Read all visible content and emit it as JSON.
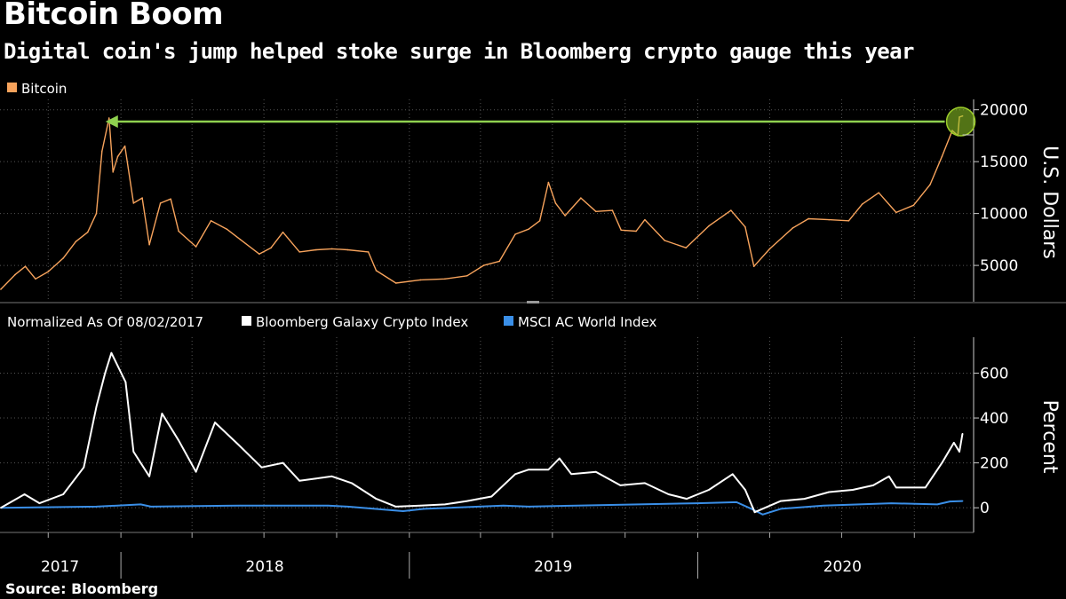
{
  "title": "Bitcoin Boom",
  "subtitle": "Digital coin's jump helped stoke surge in Bloomberg crypto gauge this year",
  "source": "Source: Bloomberg",
  "chart_data": [
    {
      "type": "line",
      "legend": [
        {
          "name": "Bitcoin",
          "color": "#f7a35c"
        }
      ],
      "ylabel": "U.S. Dollars",
      "yticks": [
        5000,
        10000,
        15000,
        20000
      ],
      "ylim": [
        1500,
        21000
      ],
      "grid": true,
      "annotation": "highlighted recent high matching the prior record",
      "series": [
        {
          "name": "Bitcoin",
          "color": "#f7a35c",
          "x": [
            "2017-08-02",
            "2017-08-20",
            "2017-09-02",
            "2017-09-15",
            "2017-10-01",
            "2017-10-20",
            "2017-11-05",
            "2017-11-20",
            "2017-12-01",
            "2017-12-08",
            "2017-12-17",
            "2017-12-22",
            "2017-12-28",
            "2018-01-06",
            "2018-01-17",
            "2018-01-28",
            "2018-02-06",
            "2018-02-20",
            "2018-03-05",
            "2018-03-15",
            "2018-04-06",
            "2018-04-25",
            "2018-05-15",
            "2018-06-01",
            "2018-06-25",
            "2018-07-10",
            "2018-07-25",
            "2018-08-15",
            "2018-09-05",
            "2018-09-25",
            "2018-10-15",
            "2018-11-10",
            "2018-11-20",
            "2018-12-15",
            "2019-01-15",
            "2019-02-15",
            "2019-03-15",
            "2019-04-05",
            "2019-04-25",
            "2019-05-15",
            "2019-06-01",
            "2019-06-15",
            "2019-06-26",
            "2019-07-05",
            "2019-07-17",
            "2019-08-06",
            "2019-08-25",
            "2019-09-15",
            "2019-09-26",
            "2019-10-15",
            "2019-10-26",
            "2019-11-20",
            "2019-12-17",
            "2020-01-15",
            "2020-02-12",
            "2020-03-01",
            "2020-03-12",
            "2020-04-01",
            "2020-04-30",
            "2020-05-20",
            "2020-06-15",
            "2020-07-10",
            "2020-07-27",
            "2020-08-17",
            "2020-09-08",
            "2020-09-30",
            "2020-10-21",
            "2020-11-05",
            "2020-11-18",
            "2020-11-25",
            "2020-11-27",
            "2020-12-01"
          ],
          "values": [
            2700,
            4100,
            4900,
            3700,
            4400,
            5700,
            7300,
            8200,
            10000,
            16000,
            19200,
            14000,
            15500,
            16500,
            11000,
            11500,
            7000,
            11000,
            11400,
            8300,
            6800,
            9300,
            8500,
            7500,
            6100,
            6700,
            8200,
            6300,
            6500,
            6600,
            6500,
            6300,
            4500,
            3300,
            3600,
            3700,
            4000,
            5000,
            5400,
            8000,
            8500,
            9300,
            13000,
            11000,
            9800,
            11500,
            10200,
            10300,
            8400,
            8300,
            9400,
            7400,
            6700,
            8800,
            10300,
            8700,
            4900,
            6600,
            8600,
            9500,
            9400,
            9300,
            10900,
            12000,
            10100,
            10800,
            12800,
            15500,
            18000,
            17500,
            19300,
            19400
          ]
        }
      ]
    },
    {
      "type": "line",
      "legend_title": "Normalized As Of 08/02/2017",
      "legend": [
        {
          "name": "Bloomberg Galaxy Crypto Index",
          "color": "#ffffff"
        },
        {
          "name": "MSCI AC World Index",
          "color": "#3a8fe8"
        }
      ],
      "ylabel": "Percent",
      "yticks": [
        0,
        200,
        400,
        600
      ],
      "ylim": [
        -110,
        760
      ],
      "grid": true,
      "x_ticks": [
        "2017",
        "2018",
        "2019",
        "2020"
      ],
      "series": [
        {
          "name": "Bloomberg Galaxy Crypto Index",
          "color": "#ffffff",
          "x": [
            "2017-08-02",
            "2017-09-01",
            "2017-09-20",
            "2017-10-20",
            "2017-11-15",
            "2017-12-01",
            "2017-12-12",
            "2017-12-20",
            "2018-01-07",
            "2018-01-17",
            "2018-02-06",
            "2018-02-22",
            "2018-03-15",
            "2018-04-06",
            "2018-04-30",
            "2018-05-30",
            "2018-06-28",
            "2018-07-25",
            "2018-08-15",
            "2018-09-05",
            "2018-09-25",
            "2018-10-20",
            "2018-11-20",
            "2018-12-15",
            "2019-01-15",
            "2019-02-15",
            "2019-03-15",
            "2019-04-15",
            "2019-05-15",
            "2019-06-01",
            "2019-06-26",
            "2019-07-10",
            "2019-07-25",
            "2019-08-25",
            "2019-09-25",
            "2019-10-26",
            "2019-11-25",
            "2019-12-18",
            "2020-01-15",
            "2020-02-14",
            "2020-03-01",
            "2020-03-13",
            "2020-04-15",
            "2020-05-15",
            "2020-06-15",
            "2020-07-15",
            "2020-08-10",
            "2020-08-30",
            "2020-09-08",
            "2020-10-15",
            "2020-11-05",
            "2020-11-20",
            "2020-11-27",
            "2020-12-01"
          ],
          "values": [
            0,
            60,
            20,
            60,
            180,
            450,
            600,
            690,
            560,
            250,
            140,
            420,
            300,
            160,
            380,
            280,
            180,
            200,
            120,
            130,
            140,
            110,
            40,
            5,
            10,
            15,
            30,
            50,
            150,
            170,
            170,
            220,
            150,
            160,
            100,
            110,
            60,
            40,
            80,
            150,
            80,
            -20,
            30,
            40,
            70,
            80,
            100,
            140,
            90,
            90,
            200,
            290,
            250,
            330
          ]
        },
        {
          "name": "MSCI AC World Index",
          "color": "#3a8fe8",
          "x": [
            "2017-08-02",
            "2017-12-01",
            "2018-01-26",
            "2018-02-08",
            "2018-06-01",
            "2018-09-20",
            "2018-10-15",
            "2018-12-24",
            "2019-01-20",
            "2019-04-30",
            "2019-06-01",
            "2019-08-01",
            "2019-12-31",
            "2020-02-19",
            "2020-03-12",
            "2020-03-23",
            "2020-04-15",
            "2020-06-08",
            "2020-09-02",
            "2020-10-30",
            "2020-11-15",
            "2020-12-01"
          ],
          "values": [
            0,
            5,
            15,
            5,
            10,
            10,
            5,
            -15,
            -5,
            10,
            5,
            10,
            20,
            25,
            -10,
            -30,
            -5,
            10,
            20,
            15,
            28,
            30
          ]
        }
      ]
    }
  ]
}
